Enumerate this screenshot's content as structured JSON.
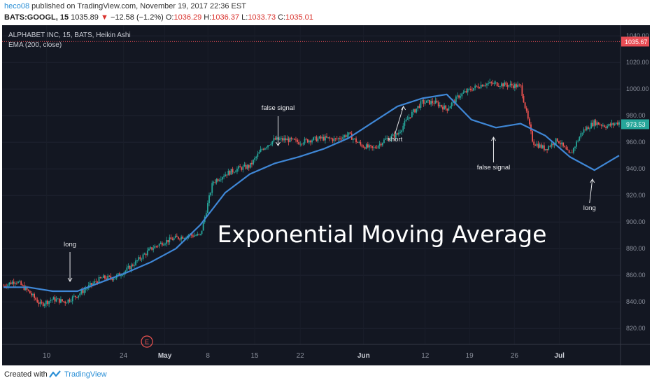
{
  "header": {
    "author": "heco08",
    "published_text": "published on TradingView.com, November 19, 2017 22:36 EST",
    "symbol": "BATS:GOOGL, 15",
    "last": "1035.89",
    "change_arrow": "▼",
    "change": "−12.58 (−1.2%)",
    "o_label": "O:",
    "o_value": "1036.29",
    "h_label": "H:",
    "h_value": "1036.37",
    "l_label": "L:",
    "l_value": "1033.73",
    "c_label": "C:",
    "c_value": "1035.01"
  },
  "legend": {
    "series": "ALPHABET INC, 15, BATS, Heikin Ashi",
    "indicator": "EMA (200, close)"
  },
  "footer": {
    "created": "Created with",
    "brand": "TradingView"
  },
  "chart_data": {
    "type": "line",
    "title": "Exponential Moving Average",
    "chart_type_detail": "Heikin Ashi candlestick with EMA(200) overlay",
    "ylim": [
      808,
      1048
    ],
    "y_ticks": [
      820,
      840,
      860,
      880,
      900,
      920,
      940,
      960,
      980,
      1000,
      1020,
      1040
    ],
    "x_tick_labels": [
      "10",
      "24",
      "May",
      "8",
      "15",
      "22",
      "Jun",
      "12",
      "19",
      "26",
      "Jul"
    ],
    "x_tick_bold": [
      "May",
      "Jun",
      "Jul"
    ],
    "grid": true,
    "series": [
      {
        "name": "Heikin Ashi",
        "x": [
          0,
          2,
          4,
          6,
          8,
          10,
          12,
          14,
          16,
          18,
          20,
          22,
          24,
          26,
          28,
          30,
          32,
          34,
          36,
          38,
          40,
          42,
          44,
          46,
          48,
          50,
          52,
          54,
          56,
          58,
          60,
          62,
          64,
          66,
          68,
          70,
          72,
          74,
          76,
          78,
          80,
          82,
          84,
          86,
          88,
          90,
          92,
          94,
          96,
          98,
          100
        ],
        "values": [
          852,
          856,
          848,
          838,
          842,
          840,
          845,
          852,
          858,
          858,
          864,
          872,
          880,
          885,
          888,
          890,
          890,
          930,
          936,
          940,
          942,
          955,
          962,
          962,
          960,
          962,
          963,
          962,
          966,
          958,
          955,
          962,
          966,
          980,
          990,
          990,
          985,
          995,
          1000,
          1004,
          1004,
          1003,
          1002,
          960,
          955,
          962,
          950,
          968,
          975,
          972,
          975
        ]
      },
      {
        "name": "EMA (200, close)",
        "x": [
          0,
          4,
          8,
          12,
          16,
          20,
          24,
          28,
          32,
          36,
          40,
          44,
          48,
          52,
          56,
          60,
          64,
          68,
          72,
          76,
          80,
          84,
          88,
          92,
          96,
          100
        ],
        "values": [
          851,
          851,
          848,
          848,
          855,
          862,
          870,
          880,
          898,
          922,
          936,
          944,
          949,
          955,
          963,
          975,
          987,
          993,
          996,
          977,
          971,
          974,
          965,
          949,
          939,
          950
        ]
      }
    ],
    "current_price_label": "1035.67",
    "last_bar_label": "973.53",
    "annotations": [
      "long",
      "false signal",
      "short",
      "false signal",
      "long"
    ],
    "earnings_marker": "E",
    "colors": {
      "background": "#131722",
      "up": "#26a69a",
      "down": "#ef5350",
      "ema": "#3f87d6",
      "price_line": "#e84d55",
      "last_bar": "#26a69a"
    }
  }
}
